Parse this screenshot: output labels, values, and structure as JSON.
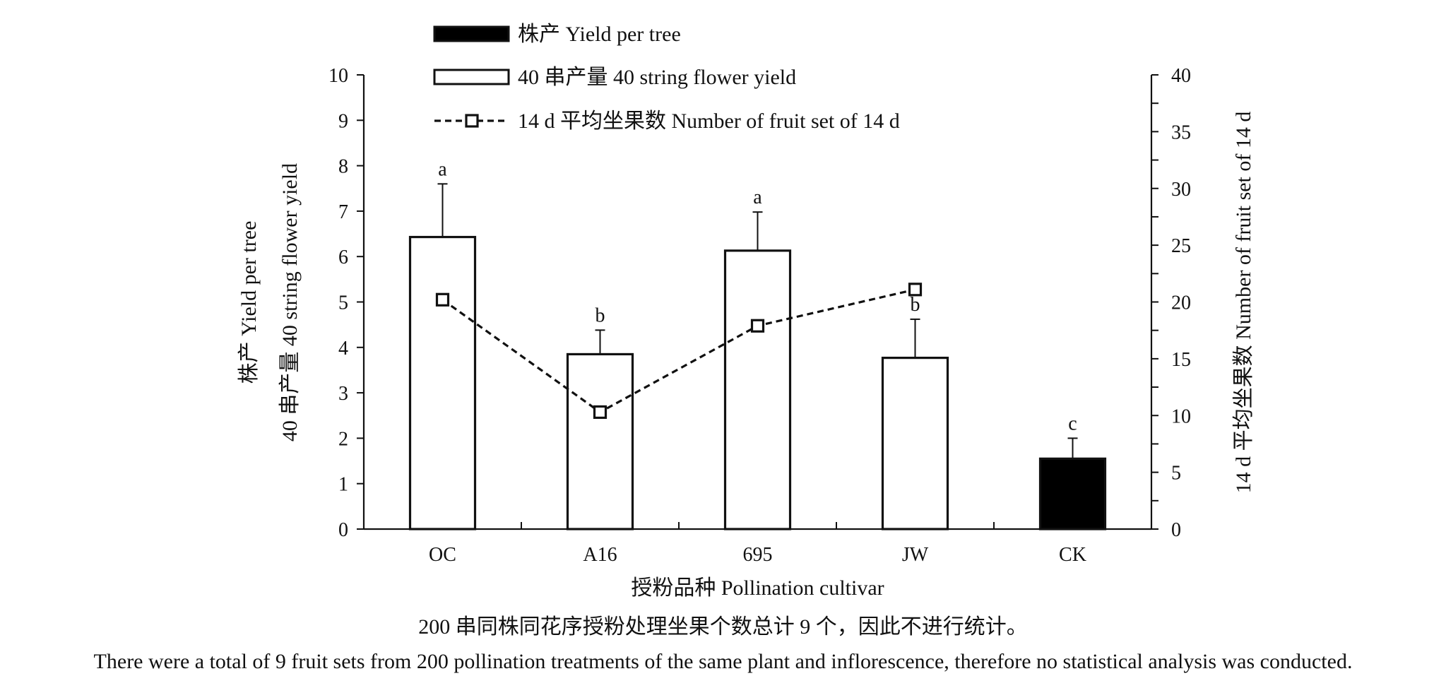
{
  "chart_data": {
    "type": "bar",
    "categories": [
      "OC",
      "A16",
      "695",
      "JW",
      "CK"
    ],
    "series": [
      {
        "name": "株产 Yield per tree",
        "kind": "bar",
        "fill": "#000000",
        "values": [
          null,
          null,
          null,
          null,
          1.55
        ],
        "errors": [
          null,
          null,
          null,
          null,
          0.45
        ],
        "labels": [
          "",
          "",
          "",
          "",
          "c"
        ]
      },
      {
        "name": "40 串产量 40 string flower yield",
        "kind": "bar",
        "fill": "#ffffff",
        "values": [
          6.43,
          3.85,
          6.13,
          3.77,
          null
        ],
        "errors": [
          1.17,
          0.53,
          0.85,
          0.85,
          null
        ],
        "labels": [
          "a",
          "b",
          "a",
          "b",
          ""
        ]
      },
      {
        "name": "14 d 平均坐果数 Number of fruit set of 14 d",
        "kind": "line",
        "axis": "right",
        "style": "dashed",
        "marker": "square",
        "values": [
          20.2,
          10.3,
          17.9,
          21.1,
          null
        ]
      }
    ],
    "xlabel": "授粉品种 Pollination cultivar",
    "ylabel_left_line1": "株产 Yield per tree",
    "ylabel_left_line2": "40 串产量 40 string flower yield",
    "ylabel_right": "14 d 平均坐果数 Number of fruit set of 14 d",
    "ylim_left": [
      0,
      10
    ],
    "yticks_left": [
      "0",
      "1",
      "2",
      "3",
      "4",
      "5",
      "6",
      "7",
      "8",
      "9",
      "10"
    ],
    "ylim_right": [
      0,
      40
    ],
    "yticks_right": [
      "0",
      "5",
      "10",
      "15",
      "20",
      "25",
      "30",
      "35",
      "40"
    ],
    "grid": false,
    "legend_position": "top"
  },
  "notes": {
    "chinese": "200 串同株同花序授粉处理坐果个数总计 9 个，因此不进行统计。",
    "english": "There were a total of 9 fruit sets from 200 pollination treatments of the same plant and inflorescence, therefore no statistical analysis was conducted."
  }
}
